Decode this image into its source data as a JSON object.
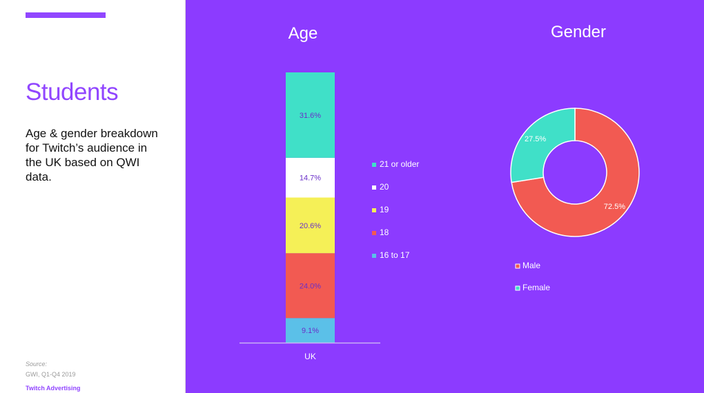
{
  "slide": {
    "title": "Students",
    "description": "Age & gender breakdown for Twitch’s audience in the UK based on QWI data.",
    "source_label": "Source:",
    "source_text": "GWI, Q1-Q4 2019",
    "brand": "Twitch Advertising",
    "accent_color": "#9146ff",
    "background_color": "#8c3bff"
  },
  "chart_data": [
    {
      "type": "bar",
      "stacked": true,
      "title": "Age",
      "categories": [
        "UK"
      ],
      "series": [
        {
          "name": "16 to 17",
          "values": [
            9.1
          ],
          "color": "#5bc0e8",
          "label": "9.1%"
        },
        {
          "name": "18",
          "values": [
            24.0
          ],
          "color": "#f25a52",
          "label": "24.0%"
        },
        {
          "name": "19",
          "values": [
            20.6
          ],
          "color": "#f5f057",
          "label": "20.6%"
        },
        {
          "name": "20",
          "values": [
            14.7
          ],
          "color": "#ffffff",
          "label": "14.7%"
        },
        {
          "name": "21 or older",
          "values": [
            31.6
          ],
          "color": "#40e0c8",
          "label": "31.6%"
        }
      ],
      "legend_order": [
        "21 or older",
        "20",
        "19",
        "18",
        "16 to 17"
      ],
      "legend_position": "right",
      "ylim": [
        0,
        100
      ],
      "grid": false
    },
    {
      "type": "pie",
      "donut": true,
      "title": "Gender",
      "slices": [
        {
          "name": "Male",
          "value": 72.5,
          "color": "#f25a52",
          "label": "72.5%"
        },
        {
          "name": "Female",
          "value": 27.5,
          "color": "#40e0c8",
          "label": "27.5%"
        }
      ],
      "legend_position": "bottom-left"
    }
  ]
}
